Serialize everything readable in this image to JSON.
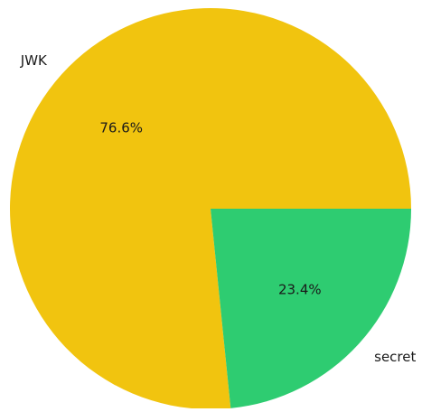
{
  "chart_data": {
    "type": "pie",
    "title": "",
    "slices": [
      {
        "label": "JWK",
        "value": 76.6,
        "pct_label": "76.6%",
        "color": "#f1c40f"
      },
      {
        "label": "secret",
        "value": 23.4,
        "pct_label": "23.4%",
        "color": "#2ecc71"
      }
    ],
    "start_angle_deg": 0,
    "direction": "counterclockwise"
  }
}
